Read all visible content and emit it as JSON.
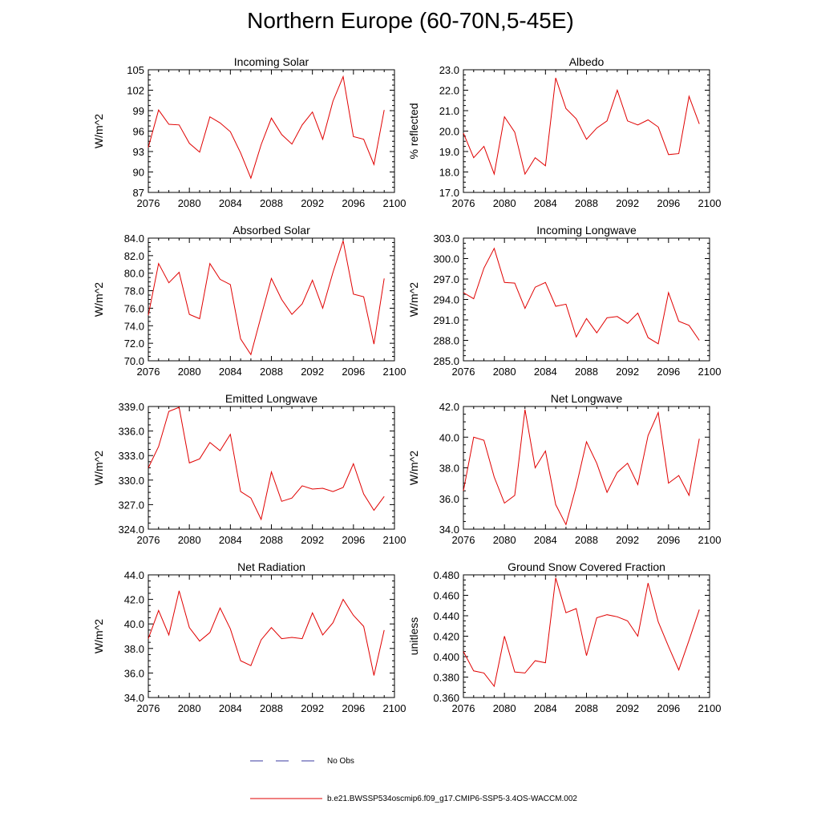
{
  "title": "Northern Europe (60-70N,5-45E)",
  "legend": {
    "obs_label": "No Obs",
    "model_label": "b.e21.BWSSP534oscmip6.f09_g17.CMIP6-SSP5-3.4OS-WACCM.002",
    "obs_color": "#3a3aa0",
    "model_color": "#e00000"
  },
  "chart_data": [
    {
      "type": "line",
      "title": "Incoming Solar",
      "ylabel": "W/m^2",
      "xlim": [
        2076,
        2100
      ],
      "ylim": [
        87,
        105
      ],
      "xticks": [
        "2076",
        "2080",
        "2084",
        "2088",
        "2092",
        "2096",
        "2100"
      ],
      "yticks": [
        "87",
        "90",
        "93",
        "96",
        "99",
        "102",
        "105"
      ],
      "x": [
        2076,
        2077,
        2078,
        2079,
        2080,
        2081,
        2082,
        2083,
        2084,
        2085,
        2086,
        2087,
        2088,
        2089,
        2090,
        2091,
        2092,
        2093,
        2094,
        2095,
        2096,
        2097,
        2098,
        2099
      ],
      "series": [
        {
          "name": "b.e21.BWSSP534oscmip6.f09_g17.CMIP6-SSP5-3.4OS-WACCM.002",
          "values": [
            93.6,
            99.1,
            97.0,
            96.9,
            94.2,
            92.9,
            98.1,
            97.2,
            95.9,
            92.8,
            89.1,
            94.0,
            97.9,
            95.5,
            94.1,
            96.9,
            98.8,
            94.8,
            100.4,
            104.0,
            95.2,
            94.8,
            91.1,
            99.1
          ]
        }
      ]
    },
    {
      "type": "line",
      "title": "Albedo",
      "ylabel": "% reflected",
      "xlim": [
        2076,
        2100
      ],
      "ylim": [
        17.0,
        23.0
      ],
      "xticks": [
        "2076",
        "2080",
        "2084",
        "2088",
        "2092",
        "2096",
        "2100"
      ],
      "yticks": [
        "17.0",
        "18.0",
        "19.0",
        "20.0",
        "21.0",
        "22.0",
        "23.0"
      ],
      "x": [
        2076,
        2077,
        2078,
        2079,
        2080,
        2081,
        2082,
        2083,
        2084,
        2085,
        2086,
        2087,
        2088,
        2089,
        2090,
        2091,
        2092,
        2093,
        2094,
        2095,
        2096,
        2097,
        2098,
        2099
      ],
      "series": [
        {
          "name": "b.e21.BWSSP534oscmip6.f09_g17.CMIP6-SSP5-3.4OS-WACCM.002",
          "values": [
            19.9,
            18.7,
            19.25,
            17.9,
            20.7,
            19.95,
            17.9,
            18.7,
            18.3,
            22.6,
            21.1,
            20.6,
            19.6,
            20.15,
            20.5,
            22.0,
            20.5,
            20.3,
            20.55,
            20.2,
            18.85,
            18.9,
            21.7,
            20.35
          ]
        }
      ]
    },
    {
      "type": "line",
      "title": "Absorbed Solar",
      "ylabel": "W/m^2",
      "xlim": [
        2076,
        2100
      ],
      "ylim": [
        70.0,
        84.0
      ],
      "xticks": [
        "2076",
        "2080",
        "2084",
        "2088",
        "2092",
        "2096",
        "2100"
      ],
      "yticks": [
        "70.0",
        "72.0",
        "74.0",
        "76.0",
        "78.0",
        "80.0",
        "82.0",
        "84.0"
      ],
      "x": [
        2076,
        2077,
        2078,
        2079,
        2080,
        2081,
        2082,
        2083,
        2084,
        2085,
        2086,
        2087,
        2088,
        2089,
        2090,
        2091,
        2092,
        2093,
        2094,
        2095,
        2096,
        2097,
        2098,
        2099
      ],
      "series": [
        {
          "name": "b.e21.BWSSP534oscmip6.f09_g17.CMIP6-SSP5-3.4OS-WACCM.002",
          "values": [
            75.2,
            81.1,
            78.9,
            80.1,
            75.3,
            74.8,
            81.1,
            79.3,
            78.7,
            72.5,
            70.7,
            75.1,
            79.4,
            77.0,
            75.3,
            76.5,
            79.2,
            76.0,
            80.1,
            83.7,
            77.6,
            77.3,
            71.9,
            79.4
          ]
        }
      ]
    },
    {
      "type": "line",
      "title": "Incoming Longwave",
      "ylabel": "W/m^2",
      "xlim": [
        2076,
        2100
      ],
      "ylim": [
        285.0,
        303.0
      ],
      "xticks": [
        "2076",
        "2080",
        "2084",
        "2088",
        "2092",
        "2096",
        "2100"
      ],
      "yticks": [
        "285.0",
        "288.0",
        "291.0",
        "294.0",
        "297.0",
        "300.0",
        "303.0"
      ],
      "x": [
        2076,
        2077,
        2078,
        2079,
        2080,
        2081,
        2082,
        2083,
        2084,
        2085,
        2086,
        2087,
        2088,
        2089,
        2090,
        2091,
        2092,
        2093,
        2094,
        2095,
        2096,
        2097,
        2098,
        2099
      ],
      "series": [
        {
          "name": "b.e21.BWSSP534oscmip6.f09_g17.CMIP6-SSP5-3.4OS-WACCM.002",
          "values": [
            295.0,
            294.1,
            298.6,
            301.5,
            296.5,
            296.4,
            292.7,
            295.8,
            296.5,
            293.0,
            293.3,
            288.5,
            291.2,
            289.1,
            291.3,
            291.5,
            290.5,
            292.0,
            288.4,
            287.5,
            295.0,
            290.8,
            290.2,
            288.0
          ]
        }
      ]
    },
    {
      "type": "line",
      "title": "Emitted Longwave",
      "ylabel": "W/m^2",
      "xlim": [
        2076,
        2100
      ],
      "ylim": [
        324.0,
        339.0
      ],
      "xticks": [
        "2076",
        "2080",
        "2084",
        "2088",
        "2092",
        "2096",
        "2100"
      ],
      "yticks": [
        "324.0",
        "327.0",
        "330.0",
        "333.0",
        "336.0",
        "339.0"
      ],
      "x": [
        2076,
        2077,
        2078,
        2079,
        2080,
        2081,
        2082,
        2083,
        2084,
        2085,
        2086,
        2087,
        2088,
        2089,
        2090,
        2091,
        2092,
        2093,
        2094,
        2095,
        2096,
        2097,
        2098,
        2099
      ],
      "series": [
        {
          "name": "b.e21.BWSSP534oscmip6.f09_g17.CMIP6-SSP5-3.4OS-WACCM.002",
          "values": [
            331.5,
            334.1,
            338.4,
            338.9,
            332.1,
            332.6,
            334.6,
            333.6,
            335.6,
            328.6,
            327.8,
            325.2,
            331.0,
            327.4,
            327.8,
            329.3,
            328.9,
            329.0,
            328.6,
            329.1,
            332.0,
            328.3,
            326.3,
            328.0
          ]
        }
      ]
    },
    {
      "type": "line",
      "title": "Net Longwave",
      "ylabel": "W/m^2",
      "xlim": [
        2076,
        2100
      ],
      "ylim": [
        34.0,
        42.0
      ],
      "xticks": [
        "2076",
        "2080",
        "2084",
        "2088",
        "2092",
        "2096",
        "2100"
      ],
      "yticks": [
        "34.0",
        "36.0",
        "38.0",
        "40.0",
        "42.0"
      ],
      "x": [
        2076,
        2077,
        2078,
        2079,
        2080,
        2081,
        2082,
        2083,
        2084,
        2085,
        2086,
        2087,
        2088,
        2089,
        2090,
        2091,
        2092,
        2093,
        2094,
        2095,
        2096,
        2097,
        2098,
        2099
      ],
      "series": [
        {
          "name": "b.e21.BWSSP534oscmip6.f09_g17.CMIP6-SSP5-3.4OS-WACCM.002",
          "values": [
            36.5,
            40.0,
            39.8,
            37.4,
            35.7,
            36.2,
            41.8,
            38.0,
            39.1,
            35.6,
            34.3,
            36.8,
            39.7,
            38.3,
            36.4,
            37.7,
            38.3,
            36.9,
            40.1,
            41.6,
            37.0,
            37.5,
            36.2,
            39.9
          ]
        }
      ]
    },
    {
      "type": "line",
      "title": "Net Radiation",
      "ylabel": "W/m^2",
      "xlim": [
        2076,
        2100
      ],
      "ylim": [
        34.0,
        44.0
      ],
      "xticks": [
        "2076",
        "2080",
        "2084",
        "2088",
        "2092",
        "2096",
        "2100"
      ],
      "yticks": [
        "34.0",
        "36.0",
        "38.0",
        "40.0",
        "42.0",
        "44.0"
      ],
      "x": [
        2076,
        2077,
        2078,
        2079,
        2080,
        2081,
        2082,
        2083,
        2084,
        2085,
        2086,
        2087,
        2088,
        2089,
        2090,
        2091,
        2092,
        2093,
        2094,
        2095,
        2096,
        2097,
        2098,
        2099
      ],
      "series": [
        {
          "name": "b.e21.BWSSP534oscmip6.f09_g17.CMIP6-SSP5-3.4OS-WACCM.002",
          "values": [
            38.8,
            41.1,
            39.1,
            42.7,
            39.7,
            38.6,
            39.3,
            41.3,
            39.6,
            37.0,
            36.6,
            38.7,
            39.7,
            38.8,
            38.9,
            38.8,
            40.9,
            39.1,
            40.1,
            42.0,
            40.7,
            39.8,
            35.8,
            39.5
          ]
        }
      ]
    },
    {
      "type": "line",
      "title": "Ground Snow Covered Fraction",
      "ylabel": "unitless",
      "xlim": [
        2076,
        2100
      ],
      "ylim": [
        0.36,
        0.48
      ],
      "xticks": [
        "2076",
        "2080",
        "2084",
        "2088",
        "2092",
        "2096",
        "2100"
      ],
      "yticks": [
        "0.360",
        "0.380",
        "0.400",
        "0.420",
        "0.440",
        "0.460",
        "0.480"
      ],
      "x": [
        2076,
        2077,
        2078,
        2079,
        2080,
        2081,
        2082,
        2083,
        2084,
        2085,
        2086,
        2087,
        2088,
        2089,
        2090,
        2091,
        2092,
        2093,
        2094,
        2095,
        2096,
        2097,
        2098,
        2099
      ],
      "series": [
        {
          "name": "b.e21.BWSSP534oscmip6.f09_g17.CMIP6-SSP5-3.4OS-WACCM.002",
          "values": [
            0.405,
            0.386,
            0.384,
            0.371,
            0.42,
            0.385,
            0.384,
            0.396,
            0.394,
            0.477,
            0.443,
            0.447,
            0.401,
            0.438,
            0.441,
            0.439,
            0.435,
            0.42,
            0.472,
            0.434,
            0.41,
            0.387,
            0.416,
            0.446
          ]
        }
      ]
    }
  ]
}
